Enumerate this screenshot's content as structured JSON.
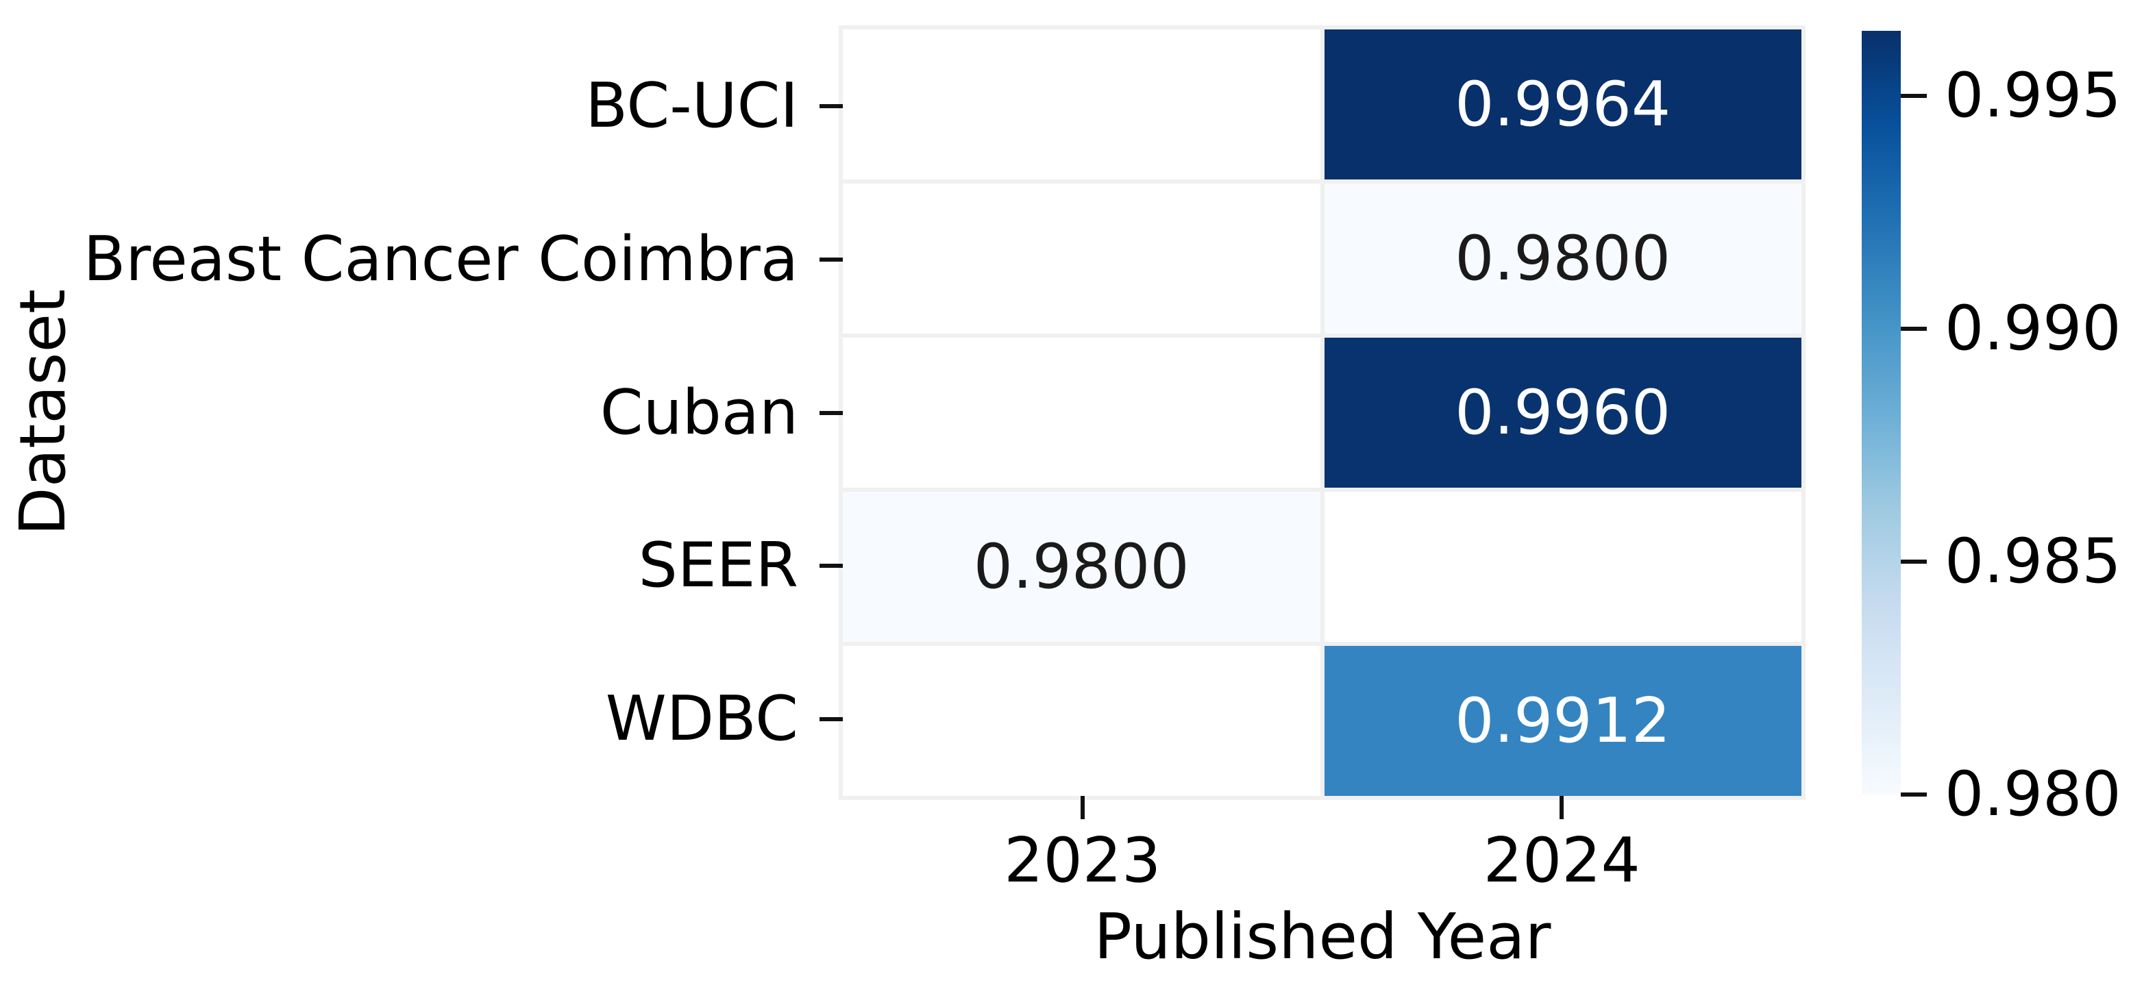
{
  "chart_data": {
    "type": "heatmap",
    "title": "",
    "xlabel": "Published Year",
    "ylabel": "Dataset",
    "x_categories": [
      "2023",
      "2024"
    ],
    "y_categories": [
      "BC-UCI",
      "Breast Cancer Coimbra",
      "Cuban",
      "SEER",
      "WDBC"
    ],
    "rows": [
      {
        "label": "BC-UCI",
        "cells": [
          {
            "value": null,
            "label": "",
            "bg": "#ffffff"
          },
          {
            "value": 0.9964,
            "label": "0.9964",
            "bg": "#08306b",
            "fg": "#ffffff"
          }
        ]
      },
      {
        "label": "Breast Cancer Coimbra",
        "cells": [
          {
            "value": null,
            "label": "",
            "bg": "#ffffff"
          },
          {
            "value": 0.98,
            "label": "0.9800",
            "bg": "#f7fbff",
            "fg": "#1a1a1a"
          }
        ]
      },
      {
        "label": "Cuban",
        "cells": [
          {
            "value": null,
            "label": "",
            "bg": "#ffffff"
          },
          {
            "value": 0.996,
            "label": "0.9960",
            "bg": "#09336e",
            "fg": "#ffffff"
          }
        ]
      },
      {
        "label": "SEER",
        "cells": [
          {
            "value": 0.98,
            "label": "0.9800",
            "bg": "#f7fbff",
            "fg": "#1a1a1a"
          },
          {
            "value": null,
            "label": "",
            "bg": "#ffffff"
          }
        ]
      },
      {
        "label": "WDBC",
        "cells": [
          {
            "value": null,
            "label": "",
            "bg": "#ffffff"
          },
          {
            "value": 0.9912,
            "label": "0.9912",
            "bg": "#3484c1",
            "fg": "#ffffff"
          }
        ]
      }
    ],
    "colorbar": {
      "colormap": "Blues",
      "vmin": 0.98,
      "vmax": 0.9964,
      "top_color": "#08306b",
      "bottom_color": "#f7fbff",
      "ticks": [
        {
          "value": 0.995,
          "label": "0.995"
        },
        {
          "value": 0.99,
          "label": "0.990"
        },
        {
          "value": 0.985,
          "label": "0.985"
        },
        {
          "value": 0.98,
          "label": "0.980"
        }
      ]
    },
    "grid_on": false,
    "legend_position": "colorbar-right",
    "background_color": "#ffffff",
    "gridline_color": "#f0f0f0",
    "tick_color": "#111111"
  }
}
